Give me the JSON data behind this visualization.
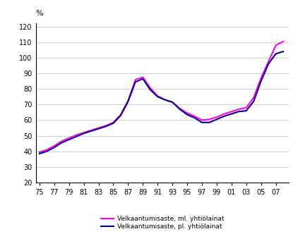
{
  "x_values": [
    1975,
    1976,
    1977,
    1978,
    1979,
    1980,
    1981,
    1982,
    1983,
    1984,
    1985,
    1986,
    1987,
    1988,
    1989,
    1990,
    1991,
    1992,
    1993,
    1994,
    1995,
    1996,
    1997,
    1998,
    1999,
    2000,
    2001,
    2002,
    2003,
    2004,
    2005,
    2006,
    2007,
    2008
  ],
  "ml_values": [
    39.5,
    41.0,
    43.5,
    46.5,
    48.5,
    50.5,
    52.0,
    53.5,
    55.0,
    56.5,
    58.5,
    63.5,
    72.5,
    86.0,
    87.5,
    80.5,
    75.5,
    73.0,
    71.5,
    67.5,
    64.5,
    62.5,
    60.0,
    60.5,
    62.0,
    64.0,
    65.5,
    67.0,
    68.0,
    74.5,
    87.0,
    97.5,
    108.0,
    110.5
  ],
  "pl_values": [
    38.5,
    40.0,
    42.5,
    45.5,
    47.5,
    49.5,
    51.5,
    53.0,
    54.5,
    56.0,
    58.0,
    63.0,
    72.0,
    84.5,
    86.5,
    79.5,
    75.0,
    73.0,
    71.5,
    67.0,
    63.5,
    61.5,
    58.5,
    58.5,
    60.5,
    62.5,
    64.0,
    65.5,
    66.0,
    72.0,
    85.0,
    96.0,
    102.5,
    104.0
  ],
  "ml_color": "#FF00FF",
  "pl_color": "#000080",
  "ylabel": "%",
  "yticks": [
    20,
    30,
    40,
    50,
    60,
    70,
    80,
    90,
    100,
    110,
    120
  ],
  "xtick_labels": [
    "75",
    "77",
    "79",
    "81",
    "83",
    "85",
    "87",
    "89",
    "91",
    "93",
    "95",
    "97",
    "99",
    "01",
    "03",
    "05",
    "07"
  ],
  "xtick_positions": [
    1975,
    1977,
    1979,
    1981,
    1983,
    1985,
    1987,
    1989,
    1991,
    1993,
    1995,
    1997,
    1999,
    2001,
    2003,
    2005,
    2007
  ],
  "ylim": [
    20,
    122
  ],
  "xlim": [
    1974.5,
    2008.8
  ],
  "legend_ml": "Velkaantumisaste, ml. yhtiölainat",
  "legend_pl": "Velkaantumisaste, pl. yhtiölainat",
  "bg_color": "#FFFFFF",
  "grid_color": "#BBBBBB",
  "line_width": 1.5
}
